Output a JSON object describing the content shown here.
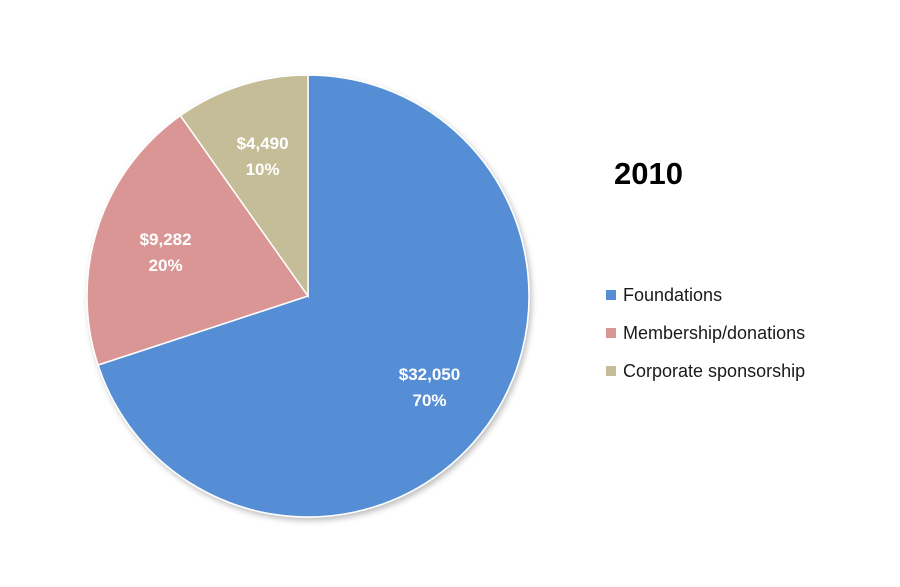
{
  "chart_data": {
    "type": "pie",
    "title": "2010",
    "categories": [
      "Foundations",
      "Membership/donations",
      "Corporate sponsorship"
    ],
    "values": [
      32050,
      9282,
      4490
    ],
    "value_labels": [
      "$32,050",
      "$9,282",
      "$4,490"
    ],
    "percent_labels": [
      "70%",
      "20%",
      "10%"
    ],
    "colors": [
      "#558ed5",
      "#d99694",
      "#c4bd97"
    ],
    "start_angle_deg": 0,
    "direction": "clockwise",
    "legend": {
      "placement": "right",
      "entries": [
        "Foundations",
        "Membership/donations",
        "Corporate sponsorship"
      ]
    }
  }
}
